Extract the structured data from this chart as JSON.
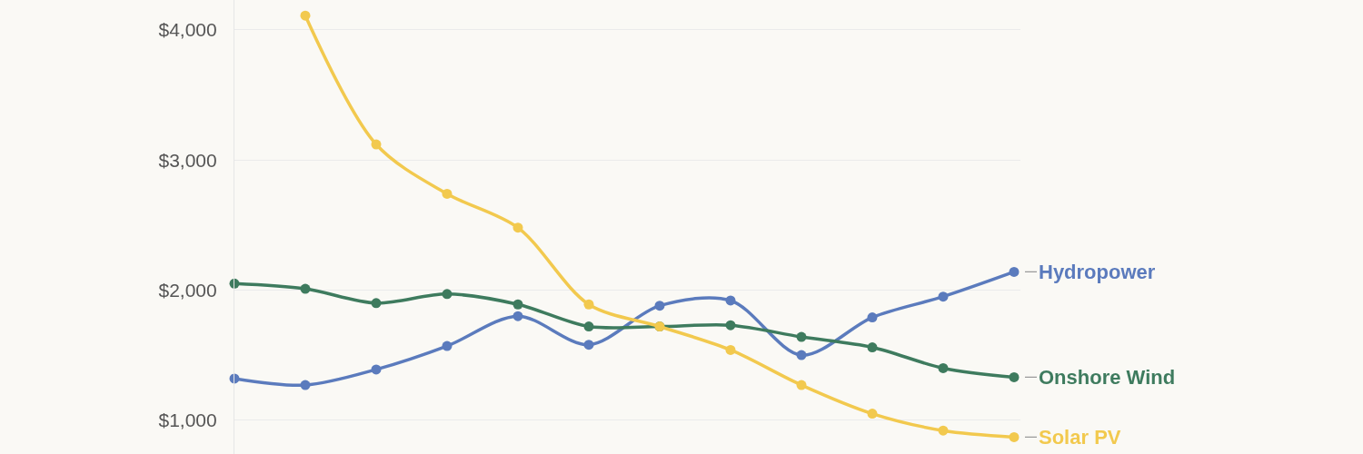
{
  "chart_data": {
    "type": "line",
    "categories": [
      null,
      null,
      null,
      null,
      null,
      null,
      null,
      null,
      null,
      null,
      null,
      null
    ],
    "series": [
      {
        "name": "Hydropower",
        "color": "#5b7bbd",
        "values": [
          1320,
          1270,
          1390,
          1570,
          1800,
          1580,
          1880,
          1920,
          1500,
          1790,
          1950,
          2140
        ]
      },
      {
        "name": "Onshore Wind",
        "color": "#3e7b5e",
        "values": [
          2050,
          2010,
          1900,
          1970,
          1890,
          1720,
          1720,
          1730,
          1640,
          1560,
          1400,
          1330
        ]
      },
      {
        "name": "Solar PV",
        "color": "#f2c94e",
        "values": [
          null,
          4110,
          3120,
          2740,
          2480,
          1890,
          1720,
          1540,
          1270,
          1050,
          920,
          870
        ]
      }
    ],
    "ylim": [
      740,
      4230
    ],
    "yticks": [
      {
        "value": 1000,
        "label": "$1,000"
      },
      {
        "value": 2000,
        "label": "$2,000"
      },
      {
        "value": 3000,
        "label": "$3,000"
      },
      {
        "value": 4000,
        "label": "$4,000"
      }
    ],
    "grid": "y",
    "tick_labels": "y",
    "marker": "circle",
    "line_style": "solid"
  }
}
